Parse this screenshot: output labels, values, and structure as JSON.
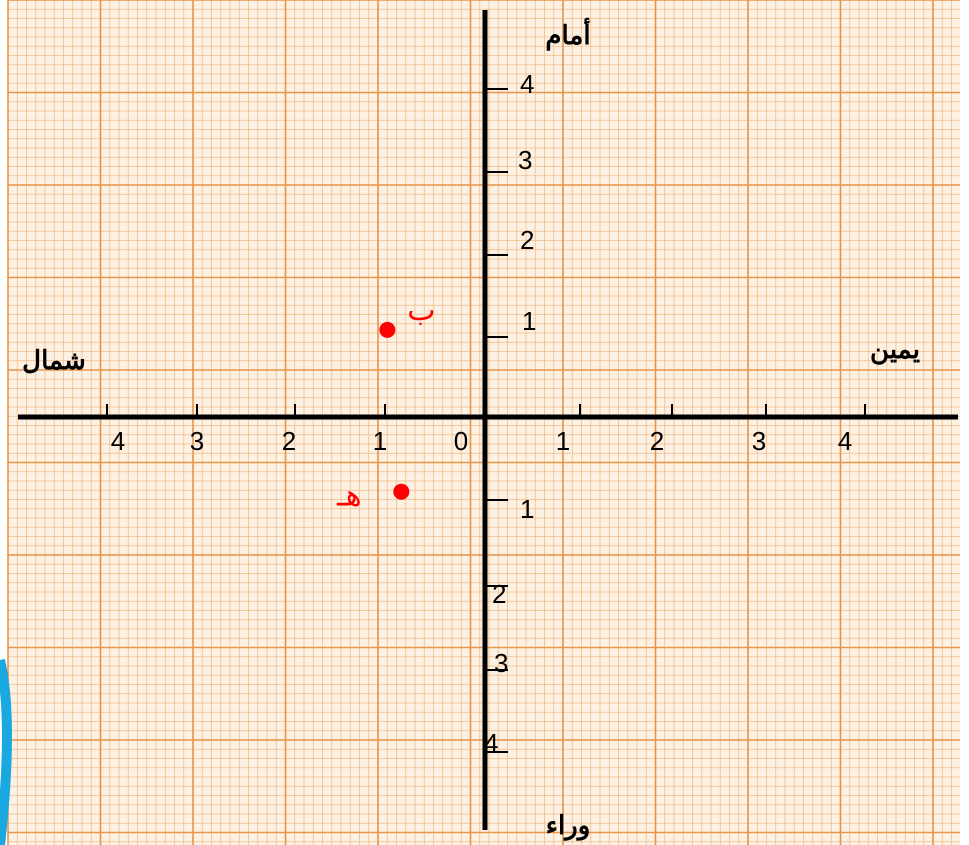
{
  "direction_labels": {
    "top": "أمام",
    "bottom": "وراء",
    "left": "شمال",
    "right": "يمين"
  },
  "x_ticks": {
    "left_side": [
      "4",
      "3",
      "2",
      "1"
    ],
    "origin": "0",
    "right_side": [
      "1",
      "2",
      "3",
      "4"
    ]
  },
  "y_ticks": {
    "up": [
      "1",
      "2",
      "3",
      "4"
    ],
    "down": [
      "1",
      "2",
      "3",
      "4"
    ]
  },
  "points": [
    {
      "label": "ب",
      "x": -1.05,
      "y": 1.05
    },
    {
      "label": "هـ",
      "x": -0.9,
      "y": -0.9
    }
  ],
  "colors": {
    "paper": "#fdf1e3",
    "grid_minor": "#f2bc88",
    "grid_major": "#e8944a",
    "axis": "#000000",
    "point": "#ff0000",
    "page_edge": "#1aa8e0"
  }
}
